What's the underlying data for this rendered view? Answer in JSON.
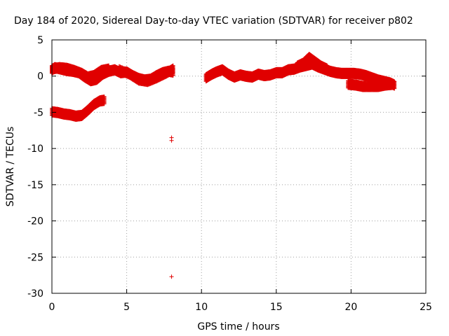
{
  "chart_data": {
    "type": "scatter",
    "title": "Day 184 of 2020, Sidereal Day-to-day VTEC variation (SDTVAR) for receiver p802",
    "xlabel": "GPS time / hours",
    "ylabel": "SDTVAR / TECUs",
    "xlim": [
      0,
      25
    ],
    "ylim": [
      -30,
      5
    ],
    "xticks": [
      0,
      5,
      10,
      15,
      20,
      25
    ],
    "yticks": [
      5,
      0,
      -5,
      -10,
      -15,
      -20,
      -25,
      -30
    ],
    "grid": true,
    "marker": "+",
    "color": "#e00000",
    "series": [
      {
        "name": "SDTVAR",
        "band_halfwidth": 0.55,
        "segments": [
          [
            [
              0.0,
              0.8
            ],
            [
              0.2,
              1.1
            ],
            [
              0.6,
              0.9
            ],
            [
              1.0,
              0.7
            ],
            [
              1.4,
              0.6
            ],
            [
              1.8,
              0.4
            ],
            [
              2.2,
              -0.2
            ],
            [
              2.6,
              -0.7
            ],
            [
              3.0,
              -0.5
            ],
            [
              3.4,
              0.2
            ],
            [
              3.8,
              0.6
            ],
            [
              4.2,
              0.8
            ],
            [
              4.6,
              0.4
            ],
            [
              5.0,
              0.5
            ],
            [
              5.4,
              0.0
            ],
            [
              5.8,
              -0.4
            ],
            [
              6.2,
              -0.6
            ],
            [
              6.6,
              -0.5
            ],
            [
              7.0,
              0.0
            ],
            [
              7.4,
              0.4
            ],
            [
              7.8,
              0.6
            ],
            [
              8.1,
              0.5
            ]
          ],
          [
            [
              0.0,
              0.9
            ],
            [
              0.5,
              1.1
            ],
            [
              1.0,
              1.0
            ],
            [
              1.5,
              0.7
            ],
            [
              2.0,
              0.3
            ],
            [
              2.4,
              -0.2
            ],
            [
              2.8,
              0.0
            ],
            [
              3.3,
              0.7
            ],
            [
              3.8,
              0.9
            ]
          ],
          [
            [
              4.5,
              0.8
            ],
            [
              5.2,
              0.2
            ],
            [
              5.8,
              -0.6
            ],
            [
              6.4,
              -0.8
            ],
            [
              7.0,
              -0.3
            ],
            [
              7.6,
              0.3
            ],
            [
              8.1,
              0.9
            ]
          ],
          [
            [
              10.3,
              -0.3
            ],
            [
              10.7,
              0.2
            ],
            [
              11.0,
              0.5
            ],
            [
              11.4,
              0.8
            ],
            [
              11.8,
              0.2
            ],
            [
              12.2,
              -0.2
            ],
            [
              12.6,
              0.1
            ],
            [
              13.0,
              -0.1
            ],
            [
              13.4,
              -0.2
            ],
            [
              13.8,
              0.2
            ],
            [
              14.2,
              0.0
            ],
            [
              14.6,
              0.1
            ],
            [
              15.0,
              0.4
            ],
            [
              15.4,
              0.4
            ],
            [
              15.8,
              0.8
            ],
            [
              16.2,
              0.9
            ],
            [
              16.6,
              1.2
            ],
            [
              17.0,
              1.4
            ],
            [
              17.4,
              1.6
            ],
            [
              17.8,
              1.2
            ],
            [
              18.2,
              0.9
            ],
            [
              18.6,
              0.6
            ],
            [
              19.0,
              0.4
            ],
            [
              19.4,
              0.3
            ],
            [
              19.8,
              0.3
            ],
            [
              20.2,
              0.3
            ],
            [
              20.6,
              0.2
            ],
            [
              21.0,
              0.0
            ],
            [
              21.4,
              -0.3
            ],
            [
              21.8,
              -0.6
            ],
            [
              22.2,
              -0.8
            ],
            [
              22.6,
              -1.0
            ],
            [
              22.9,
              -1.3
            ]
          ],
          [
            [
              16.4,
              1.3
            ],
            [
              16.8,
              1.7
            ],
            [
              17.2,
              2.5
            ],
            [
              17.6,
              1.9
            ],
            [
              18.0,
              1.3
            ],
            [
              18.4,
              0.9
            ]
          ],
          [
            [
              19.8,
              -1.2
            ],
            [
              20.3,
              -1.3
            ],
            [
              20.8,
              -1.5
            ],
            [
              21.3,
              -1.5
            ],
            [
              21.8,
              -1.5
            ],
            [
              22.3,
              -1.3
            ],
            [
              22.8,
              -1.2
            ]
          ],
          [
            [
              0.0,
              -5.0
            ],
            [
              0.4,
              -5.1
            ],
            [
              0.8,
              -5.3
            ],
            [
              1.2,
              -5.4
            ],
            [
              1.6,
              -5.6
            ],
            [
              2.0,
              -5.5
            ],
            [
              2.4,
              -4.8
            ],
            [
              2.8,
              -4.0
            ],
            [
              3.2,
              -3.5
            ],
            [
              3.5,
              -3.4
            ]
          ]
        ],
        "outliers": [
          [
            8.0,
            -8.5
          ],
          [
            8.0,
            -8.9
          ],
          [
            8.0,
            -27.7
          ]
        ]
      }
    ]
  }
}
